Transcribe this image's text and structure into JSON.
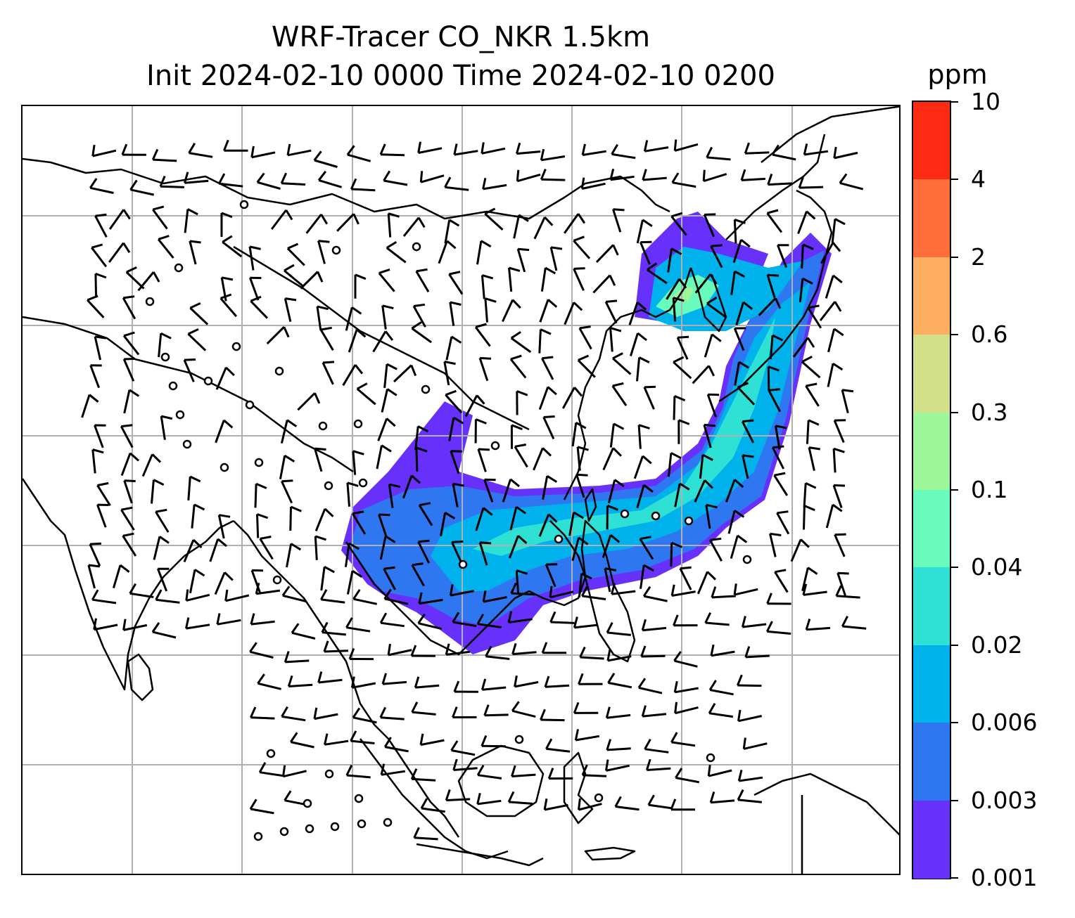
{
  "title": {
    "line1": "WRF-Tracer CO_NKR 1.5km",
    "line2": "Init 2024-02-10 0000 Time 2024-02-10 0200"
  },
  "colorbar": {
    "unit": "ppm",
    "labels": [
      "10",
      "4",
      "2",
      "0.6",
      "0.3",
      "0.1",
      "0.04",
      "0.02",
      "0.006",
      "0.003",
      "0.001"
    ],
    "colors": [
      "#ff2a14",
      "#ff6e3a",
      "#fdae61",
      "#d2e08a",
      "#9bf79a",
      "#69fbbb",
      "#2fe0d4",
      "#00b2ec",
      "#2f76f1",
      "#6830fb"
    ]
  },
  "map": {
    "coastline_color": "#000000",
    "gridline_color": "#b0b0b0",
    "plume_levels_ppm": [
      "0.001",
      "0.003",
      "0.006",
      "0.02",
      "0.04",
      "0.1"
    ],
    "wind_barbs": "black",
    "calm_marker": "circle"
  }
}
